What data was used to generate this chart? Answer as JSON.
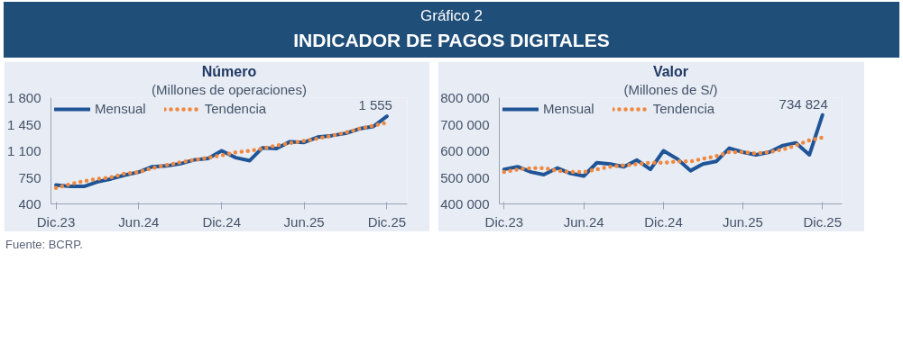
{
  "chart_data": [
    {
      "type": "line",
      "title": "Número",
      "subtitle": "(Millones de operaciones)",
      "annotations": [
        "Gráfico 2",
        "INDICADOR DE PAGOS DIGITALES",
        "Fuente: BCRP.",
        {
          "text": "1 555",
          "x": "2025-12",
          "y": 1555
        }
      ],
      "x": [
        "2023-12",
        "2024-01",
        "2024-02",
        "2024-03",
        "2024-04",
        "2024-05",
        "2024-06",
        "2024-07",
        "2024-08",
        "2024-09",
        "2024-10",
        "2024-11",
        "2024-12",
        "2025-01",
        "2025-02",
        "2025-03",
        "2025-04",
        "2025-05",
        "2025-06",
        "2025-07",
        "2025-08",
        "2025-09",
        "2025-10",
        "2025-11",
        "2025-12"
      ],
      "series": [
        {
          "name": "Mensual",
          "color": "#1f5597",
          "line_style": "solid",
          "values": [
            650,
            630,
            630,
            690,
            730,
            780,
            820,
            890,
            900,
            930,
            980,
            1000,
            1100,
            1010,
            970,
            1140,
            1130,
            1220,
            1210,
            1280,
            1300,
            1330,
            1390,
            1420,
            1555
          ]
        },
        {
          "name": "Tendencia",
          "color": "#f0883e",
          "line_style": "dotted",
          "values": [
            610,
            660,
            700,
            730,
            750,
            800,
            820,
            870,
            910,
            950,
            980,
            1010,
            1040,
            1080,
            1100,
            1130,
            1170,
            1200,
            1230,
            1260,
            1300,
            1340,
            1390,
            1430,
            1470
          ]
        }
      ],
      "xlim": [
        "2023-11-20",
        "2026-01-15"
      ],
      "xticks": [
        {
          "value": "2023-12",
          "label": "Dic.23"
        },
        {
          "value": "2024-06",
          "label": "Jun.24"
        },
        {
          "value": "2024-12",
          "label": "Dic.24"
        },
        {
          "value": "2025-06",
          "label": "Jun.25"
        },
        {
          "value": "2025-12",
          "label": "Dic.25"
        }
      ],
      "ylim": [
        400,
        1800
      ],
      "yticks": [
        400,
        750,
        {
          "value": 1100,
          "label": "1 100"
        },
        {
          "value": 1450,
          "label": "1 450"
        },
        {
          "value": 1800,
          "label": "1 800"
        }
      ],
      "grid": false,
      "legend": "top left",
      "marker": "none"
    },
    {
      "type": "line",
      "title": "Valor",
      "subtitle": "(Millones de S/)",
      "annotations": [
        {
          "text": "734 824",
          "x": "2025-12",
          "y": 734824
        }
      ],
      "x": [
        "2023-12",
        "2024-01",
        "2024-02",
        "2024-03",
        "2024-04",
        "2024-05",
        "2024-06",
        "2024-07",
        "2024-08",
        "2024-09",
        "2024-10",
        "2024-11",
        "2024-12",
        "2025-01",
        "2025-02",
        "2025-03",
        "2025-04",
        "2025-05",
        "2025-06",
        "2025-07",
        "2025-08",
        "2025-09",
        "2025-10",
        "2025-11",
        "2025-12"
      ],
      "series": [
        {
          "name": "Mensual",
          "color": "#1f5597",
          "line_style": "solid",
          "values": [
            530000,
            540000,
            520000,
            510000,
            535000,
            515000,
            505000,
            555000,
            550000,
            540000,
            565000,
            530000,
            600000,
            570000,
            525000,
            550000,
            560000,
            610000,
            595000,
            585000,
            595000,
            620000,
            630000,
            585000,
            734824
          ]
        },
        {
          "name": "Tendencia",
          "color": "#f0883e",
          "line_style": "dotted",
          "values": [
            520000,
            530000,
            535000,
            535000,
            525000,
            520000,
            520000,
            530000,
            540000,
            545000,
            550000,
            555000,
            555000,
            560000,
            560000,
            570000,
            580000,
            595000,
            595000,
            590000,
            595000,
            605000,
            620000,
            640000,
            650000
          ]
        }
      ],
      "xlim": [
        "2023-11-20",
        "2026-01-15"
      ],
      "xticks": [
        {
          "value": "2023-12",
          "label": "Dic.23"
        },
        {
          "value": "2024-06",
          "label": "Jun.24"
        },
        {
          "value": "2024-12",
          "label": "Dic.24"
        },
        {
          "value": "2025-06",
          "label": "Jun.25"
        },
        {
          "value": "2025-12",
          "label": "Dic.25"
        }
      ],
      "ylim": [
        400000,
        800000
      ],
      "yticks": [
        {
          "value": 400000,
          "label": "400 000"
        },
        {
          "value": 500000,
          "label": "500 000"
        },
        {
          "value": 600000,
          "label": "600 000"
        },
        {
          "value": 700000,
          "label": "700 000"
        },
        {
          "value": 800000,
          "label": "800 000"
        }
      ],
      "grid": false,
      "legend": "top left",
      "marker": "none"
    }
  ]
}
